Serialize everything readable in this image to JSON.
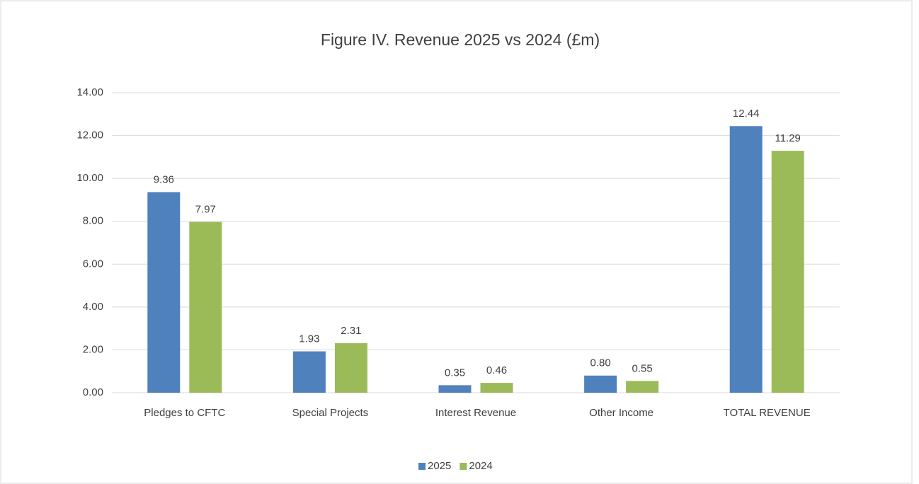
{
  "chart_data": {
    "type": "bar",
    "title": "Figure IV.  Revenue 2025 vs 2024 (£m)",
    "categories": [
      "Pledges to CFTC",
      "Special Projects",
      "Interest Revenue",
      "Other Income",
      "TOTAL REVENUE"
    ],
    "series": [
      {
        "name": "2025",
        "color": "#4f81bd",
        "values": [
          9.36,
          1.93,
          0.35,
          0.8,
          12.44
        ],
        "value_labels": [
          "9.36",
          "1.93",
          "0.35",
          "0.80",
          "12.44"
        ]
      },
      {
        "name": "2024",
        "color": "#9bbb59",
        "values": [
          7.97,
          2.31,
          0.46,
          0.55,
          11.29
        ],
        "value_labels": [
          "7.97",
          "2.31",
          "0.46",
          "0.55",
          "11.29"
        ]
      }
    ],
    "ylim": [
      0,
      14
    ],
    "yticks": [
      {
        "value": 0,
        "label": "0.00"
      },
      {
        "value": 2,
        "label": "2.00"
      },
      {
        "value": 4,
        "label": "4.00"
      },
      {
        "value": 6,
        "label": "6.00"
      },
      {
        "value": 8,
        "label": "8.00"
      },
      {
        "value": 10,
        "label": "10.00"
      },
      {
        "value": 12,
        "label": "12.00"
      },
      {
        "value": 14,
        "label": "14.00"
      }
    ],
    "grid": true,
    "legend": "bottom"
  }
}
